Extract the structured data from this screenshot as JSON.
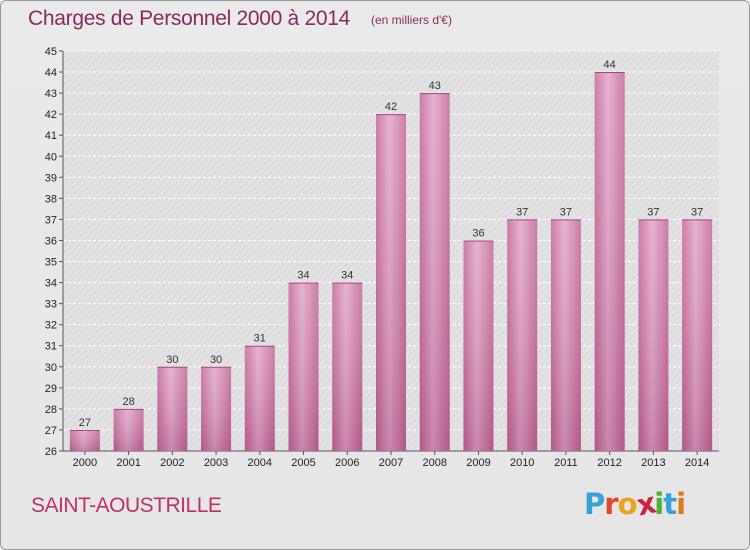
{
  "header": {
    "title": "Charges de Personnel 2000 à 2014",
    "subtitle": "(en milliers d'€)"
  },
  "footer": {
    "place": "SAINT-AOUSTRILLE",
    "logo_letters": [
      "P",
      "r",
      "o",
      "x",
      "i",
      "t",
      "i"
    ],
    "logo_colors": [
      "#3aa0d8",
      "#e04a2a",
      "#f0a020",
      "#d02040",
      "#50b030",
      "#3aa0d8",
      "#e07a20"
    ]
  },
  "colors": {
    "bar_fill": "#c26797",
    "bar_highlight": "#e2a6c8",
    "grid": "#ffffff"
  },
  "chart_data": {
    "type": "bar",
    "categories": [
      "2000",
      "2001",
      "2002",
      "2003",
      "2004",
      "2005",
      "2006",
      "2007",
      "2008",
      "2009",
      "2010",
      "2011",
      "2012",
      "2013",
      "2014"
    ],
    "values": [
      27,
      28,
      30,
      30,
      31,
      34,
      34,
      42,
      43,
      36,
      37,
      37,
      44,
      37,
      37
    ],
    "data_labels": [
      "27",
      "28",
      "30",
      "30",
      "31",
      "34",
      "34",
      "42",
      "43",
      "36",
      "37",
      "37",
      "44",
      "37",
      "37"
    ],
    "y_ticks": [
      "26",
      "27",
      "28",
      "29",
      "30",
      "31",
      "32",
      "33",
      "34",
      "35",
      "36",
      "37",
      "38",
      "39",
      "40",
      "41",
      "42",
      "43",
      "44",
      "45"
    ],
    "ylim": [
      26,
      45
    ],
    "grid": true,
    "legend": "none"
  }
}
